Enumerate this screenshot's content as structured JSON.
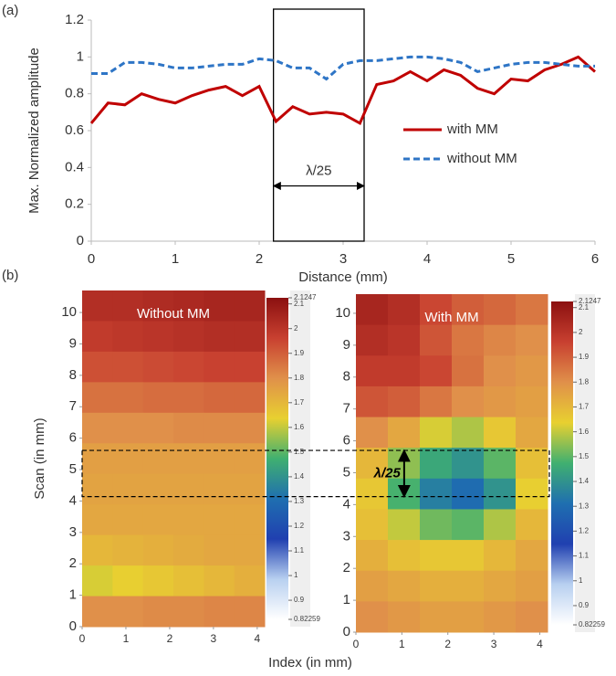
{
  "chart_data": [
    {
      "type": "line",
      "panel_label": "(a)",
      "xlabel": "Distance (mm)",
      "ylabel": "Max. Normalized amplitude",
      "x": [
        0,
        0.2,
        0.4,
        0.6,
        0.8,
        1.0,
        1.2,
        1.4,
        1.6,
        1.8,
        2.0,
        2.2,
        2.4,
        2.6,
        2.8,
        3.0,
        3.2,
        3.4,
        3.6,
        3.8,
        4.0,
        4.2,
        4.4,
        4.6,
        4.8,
        5.0,
        5.2,
        5.4,
        5.6,
        5.8,
        6.0
      ],
      "series": [
        {
          "name": "with MM",
          "color": "#c00000",
          "style": "solid",
          "values": [
            0.64,
            0.75,
            0.74,
            0.8,
            0.77,
            0.75,
            0.79,
            0.82,
            0.84,
            0.79,
            0.84,
            0.65,
            0.73,
            0.69,
            0.7,
            0.69,
            0.64,
            0.85,
            0.87,
            0.92,
            0.87,
            0.93,
            0.9,
            0.83,
            0.8,
            0.88,
            0.87,
            0.93,
            0.96,
            1.0,
            0.92
          ]
        },
        {
          "name": "without MM",
          "color": "#2e75c6",
          "style": "dashed",
          "values": [
            0.91,
            0.91,
            0.97,
            0.97,
            0.96,
            0.94,
            0.94,
            0.95,
            0.96,
            0.96,
            0.99,
            0.98,
            0.94,
            0.94,
            0.88,
            0.96,
            0.98,
            0.98,
            0.99,
            1.0,
            1.0,
            0.99,
            0.97,
            0.92,
            0.94,
            0.96,
            0.97,
            0.97,
            0.96,
            0.95,
            0.95
          ]
        }
      ],
      "xlim": [
        0,
        6
      ],
      "xticks": [
        0,
        1,
        2,
        3,
        4,
        5,
        6
      ],
      "ylim": [
        0,
        1.2
      ],
      "yticks": [
        0,
        0.2,
        0.4,
        0.6,
        0.8,
        1,
        1.2
      ],
      "annotation": "λ/25",
      "span": [
        2.17,
        3.25
      ],
      "legend": "right"
    },
    {
      "type": "heatmap",
      "panel_label": "(b)",
      "title": "Without MM",
      "ylabel": "Scan  (in mm)",
      "xlim": [
        0,
        4.17
      ],
      "xticks": [
        0,
        1,
        2,
        3,
        4
      ],
      "ylim": [
        0,
        10.7
      ],
      "yticks": [
        0,
        1,
        2,
        3,
        4,
        5,
        6,
        7,
        8,
        9,
        10
      ],
      "zlim": [
        0.82259,
        2.1247
      ],
      "zticks": [
        0.82259,
        0.9,
        1,
        1.1,
        1.2,
        1.3,
        1.4,
        1.5,
        1.6,
        1.7,
        1.8,
        1.9,
        2,
        2.1,
        2.1247
      ],
      "colorscale": [
        "#ffffff",
        "#b8d0f0",
        "#2040b0",
        "#1f6fb0",
        "#40b070",
        "#e8d030",
        "#e0904a",
        "#c84030",
        "#8b1010"
      ],
      "values": [
        [
          2.02,
          2.02,
          2.03,
          2.04,
          2.05,
          2.05
        ],
        [
          1.98,
          1.99,
          2.0,
          2.01,
          2.02,
          2.02
        ],
        [
          1.93,
          1.93,
          1.94,
          1.95,
          1.96,
          1.96
        ],
        [
          1.86,
          1.86,
          1.87,
          1.87,
          1.88,
          1.88
        ],
        [
          1.8,
          1.8,
          1.8,
          1.81,
          1.81,
          1.81
        ],
        [
          1.76,
          1.76,
          1.76,
          1.76,
          1.76,
          1.76
        ],
        [
          1.75,
          1.75,
          1.75,
          1.75,
          1.75,
          1.75
        ],
        [
          1.74,
          1.74,
          1.74,
          1.74,
          1.74,
          1.74
        ],
        [
          1.7,
          1.71,
          1.72,
          1.73,
          1.74,
          1.74
        ],
        [
          1.62,
          1.64,
          1.66,
          1.68,
          1.7,
          1.72
        ],
        [
          1.8,
          1.8,
          1.81,
          1.81,
          1.82,
          1.82
        ]
      ]
    },
    {
      "type": "heatmap",
      "title": "With MM",
      "xlabel": "Index (in mm)",
      "xlim": [
        0,
        4.17
      ],
      "xticks": [
        0,
        1,
        2,
        3,
        4
      ],
      "ylim": [
        0,
        10.6
      ],
      "yticks": [
        0,
        1,
        2,
        3,
        4,
        5,
        6,
        7,
        8,
        9,
        10
      ],
      "zlim": [
        0.82259,
        2.1247
      ],
      "zticks": [
        0.82259,
        0.9,
        1,
        1.1,
        1.2,
        1.3,
        1.4,
        1.5,
        1.6,
        1.7,
        1.8,
        1.9,
        2,
        2.1,
        2.1247
      ],
      "colorscale": [
        "#ffffff",
        "#b8d0f0",
        "#2040b0",
        "#1f6fb0",
        "#40b070",
        "#e8d030",
        "#e0904a",
        "#c84030",
        "#8b1010"
      ],
      "values": [
        [
          2.05,
          2.02,
          1.95,
          1.9,
          1.88,
          1.85
        ],
        [
          2.02,
          2.0,
          1.92,
          1.85,
          1.82,
          1.8
        ],
        [
          1.98,
          1.98,
          1.95,
          1.86,
          1.8,
          1.78
        ],
        [
          1.92,
          1.9,
          1.85,
          1.8,
          1.78,
          1.76
        ],
        [
          1.8,
          1.74,
          1.62,
          1.58,
          1.66,
          1.74
        ],
        [
          1.7,
          1.55,
          1.45,
          1.4,
          1.5,
          1.68
        ],
        [
          1.66,
          1.48,
          1.35,
          1.3,
          1.4,
          1.64
        ],
        [
          1.68,
          1.6,
          1.52,
          1.5,
          1.58,
          1.7
        ],
        [
          1.72,
          1.68,
          1.66,
          1.66,
          1.7,
          1.74
        ],
        [
          1.76,
          1.74,
          1.72,
          1.72,
          1.74,
          1.76
        ],
        [
          1.8,
          1.78,
          1.76,
          1.76,
          1.78,
          1.8
        ]
      ],
      "annotation": "λ/25",
      "span": [
        4.25,
        5.7
      ]
    }
  ]
}
